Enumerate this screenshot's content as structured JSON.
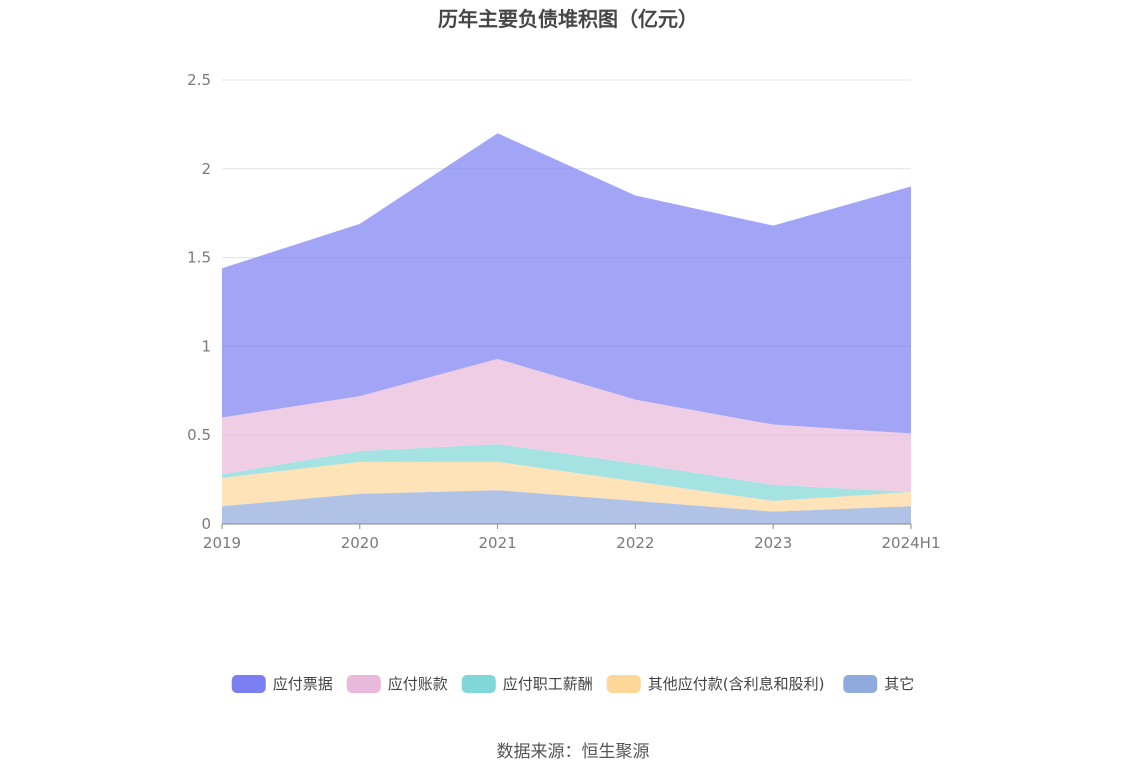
{
  "chart_data": {
    "type": "area",
    "stacked": true,
    "title": "历年主要负债堆积图（亿元）",
    "categories": [
      "2019",
      "2020",
      "2021",
      "2022",
      "2023",
      "2024H1"
    ],
    "ylim": [
      0,
      2.5
    ],
    "yticks": [
      "0",
      "0.5",
      "1",
      "1.5",
      "2",
      "2.5"
    ],
    "grid": true,
    "legend_position": "bottom",
    "series": [
      {
        "name": "其它",
        "color": "#8faadc",
        "values": [
          0.1,
          0.17,
          0.19,
          0.13,
          0.07,
          0.1
        ]
      },
      {
        "name": "其他应付款(含利息和股利)",
        "color": "#fdd69a",
        "values": [
          0.16,
          0.18,
          0.16,
          0.11,
          0.06,
          0.08
        ]
      },
      {
        "name": "应付职工薪酬",
        "color": "#7fd7d7",
        "values": [
          0.02,
          0.06,
          0.1,
          0.1,
          0.09,
          0.0
        ]
      },
      {
        "name": "应付账款",
        "color": "#e8b9da",
        "values": [
          0.32,
          0.31,
          0.48,
          0.36,
          0.34,
          0.33
        ]
      },
      {
        "name": "应付票据",
        "color": "#7b7ff2",
        "values": [
          0.84,
          0.97,
          1.27,
          1.15,
          1.12,
          1.39
        ]
      }
    ],
    "legend_order": [
      "应付票据",
      "应付账款",
      "应付职工薪酬",
      "其他应付款(含利息和股利)",
      "其它"
    ]
  },
  "source_text": "数据来源：恒生聚源"
}
